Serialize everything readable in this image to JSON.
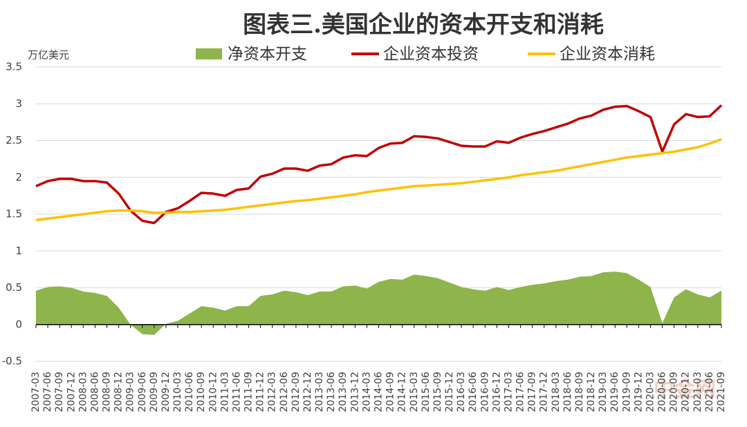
{
  "chart_data": {
    "type": "line",
    "title": "图表三.美国企业的资本开支和消耗",
    "y_label": "万亿美元",
    "watermark": "中金网",
    "categories": [
      "2007-03",
      "2007-06",
      "2007-09",
      "2007-12",
      "2008-03",
      "2008-06",
      "2008-09",
      "2008-12",
      "2009-03",
      "2009-06",
      "2009-09",
      "2009-12",
      "2010-03",
      "2010-06",
      "2010-09",
      "2010-12",
      "2011-03",
      "2011-06",
      "2011-09",
      "2011-12",
      "2012-03",
      "2012-06",
      "2012-09",
      "2012-12",
      "2013-03",
      "2013-06",
      "2013-09",
      "2013-12",
      "2014-03",
      "2014-06",
      "2014-09",
      "2014-12",
      "2015-03",
      "2015-06",
      "2015-09",
      "2015-12",
      "2016-03",
      "2016-06",
      "2016-09",
      "2016-12",
      "2017-03",
      "2017-06",
      "2017-09",
      "2017-12",
      "2018-03",
      "2018-06",
      "2018-09",
      "2018-12",
      "2019-03",
      "2019-06",
      "2019-09",
      "2019-12",
      "2020-03",
      "2020-06",
      "2020-09",
      "2020-12",
      "2021-03",
      "2021-06",
      "2021-09"
    ],
    "series": [
      {
        "name": "净资本开支",
        "kind": "area",
        "color": "#8db54b",
        "values": [
          0.46,
          0.51,
          0.52,
          0.5,
          0.45,
          0.43,
          0.39,
          0.23,
          0.0,
          -0.13,
          -0.14,
          0.01,
          0.05,
          0.15,
          0.25,
          0.23,
          0.19,
          0.25,
          0.25,
          0.39,
          0.41,
          0.46,
          0.44,
          0.4,
          0.45,
          0.45,
          0.52,
          0.53,
          0.49,
          0.58,
          0.62,
          0.61,
          0.68,
          0.66,
          0.63,
          0.57,
          0.51,
          0.48,
          0.46,
          0.51,
          0.47,
          0.51,
          0.54,
          0.56,
          0.59,
          0.61,
          0.65,
          0.66,
          0.71,
          0.72,
          0.7,
          0.61,
          0.51,
          0.02,
          0.37,
          0.48,
          0.41,
          0.37,
          0.46
        ]
      },
      {
        "name": "企业资本投资",
        "kind": "line",
        "color": "#c00000",
        "values": [
          1.88,
          1.95,
          1.98,
          1.98,
          1.95,
          1.95,
          1.93,
          1.78,
          1.55,
          1.41,
          1.38,
          1.53,
          1.58,
          1.68,
          1.79,
          1.78,
          1.75,
          1.83,
          1.85,
          2.01,
          2.05,
          2.12,
          2.12,
          2.09,
          2.16,
          2.18,
          2.27,
          2.3,
          2.29,
          2.4,
          2.46,
          2.47,
          2.56,
          2.55,
          2.53,
          2.48,
          2.43,
          2.42,
          2.42,
          2.49,
          2.47,
          2.54,
          2.59,
          2.63,
          2.68,
          2.73,
          2.8,
          2.84,
          2.92,
          2.96,
          2.97,
          2.9,
          2.82,
          2.35,
          2.72,
          2.86,
          2.82,
          2.83,
          2.98
        ]
      },
      {
        "name": "企业资本消耗",
        "kind": "line",
        "color": "#ffc000",
        "values": [
          1.42,
          1.44,
          1.46,
          1.48,
          1.5,
          1.52,
          1.54,
          1.55,
          1.55,
          1.54,
          1.52,
          1.52,
          1.53,
          1.53,
          1.54,
          1.55,
          1.56,
          1.58,
          1.6,
          1.62,
          1.64,
          1.66,
          1.68,
          1.69,
          1.71,
          1.73,
          1.75,
          1.77,
          1.8,
          1.82,
          1.84,
          1.86,
          1.88,
          1.89,
          1.9,
          1.91,
          1.92,
          1.94,
          1.96,
          1.98,
          2.0,
          2.03,
          2.05,
          2.07,
          2.09,
          2.12,
          2.15,
          2.18,
          2.21,
          2.24,
          2.27,
          2.29,
          2.31,
          2.33,
          2.35,
          2.38,
          2.41,
          2.46,
          2.52
        ]
      }
    ],
    "ylim": [
      -0.5,
      3.5
    ],
    "yticks": [
      -0.5,
      0,
      0.5,
      1,
      1.5,
      2,
      2.5,
      3,
      3.5
    ],
    "grid": true
  }
}
